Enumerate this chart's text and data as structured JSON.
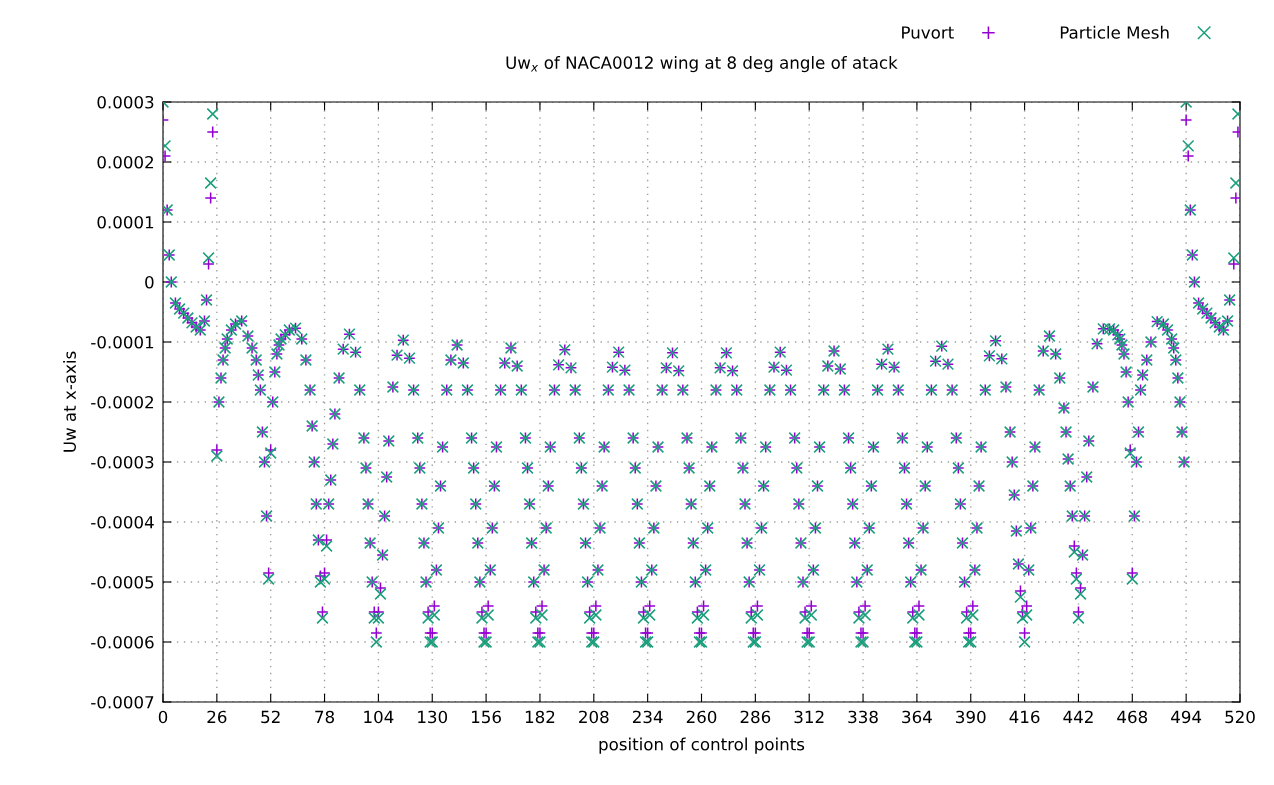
{
  "chart_data": {
    "type": "scatter",
    "title": "Uw$_{x}$ of NACA0012 wing at 8 deg angle of atack",
    "xlabel": "position of control points",
    "ylabel": "Uw at x-axis",
    "xlim": [
      0,
      520
    ],
    "xticks": [
      0,
      26,
      52,
      78,
      104,
      130,
      156,
      182,
      208,
      234,
      260,
      286,
      312,
      338,
      364,
      390,
      416,
      442,
      468,
      494,
      520
    ],
    "ylim": [
      -0.0007,
      0.0003
    ],
    "yticks": [
      -0.0007,
      -0.0006,
      -0.0005,
      -0.0004,
      -0.0003,
      -0.0002,
      -0.0001,
      0,
      0.0001,
      0.0002,
      0.0003
    ],
    "grid": true,
    "legend": "top right",
    "x": [
      0,
      1,
      2,
      3,
      4,
      6,
      8,
      10,
      12,
      14,
      16,
      18,
      20,
      21,
      22,
      23,
      24,
      26,
      27,
      28,
      29,
      30,
      31,
      33,
      35,
      38,
      41,
      43,
      45,
      46,
      47,
      48,
      49,
      50,
      51,
      52,
      53,
      54,
      55,
      56,
      57,
      59,
      61,
      64,
      67,
      69,
      71,
      72,
      73,
      74,
      75,
      76,
      77,
      78,
      79,
      80,
      81,
      82,
      83,
      85,
      87,
      90,
      93,
      95,
      97,
      98,
      99,
      100,
      101,
      102,
      103,
      104,
      105,
      106,
      107,
      108,
      109,
      111,
      113,
      116,
      119,
      121,
      123,
      124,
      125,
      126,
      127,
      128,
      129,
      130,
      131,
      132,
      133,
      134,
      135,
      137,
      139,
      142,
      145,
      147,
      149,
      150,
      151,
      152,
      153,
      154,
      155,
      156,
      157,
      158,
      159,
      160,
      161,
      163,
      165,
      168,
      171,
      173,
      175,
      176,
      177,
      178,
      179,
      180,
      181,
      182,
      183,
      184,
      185,
      186,
      187,
      189,
      191,
      194,
      197,
      199,
      201,
      202,
      203,
      204,
      205,
      206,
      207,
      208,
      209,
      210,
      211,
      212,
      213,
      215,
      217,
      220,
      223,
      225,
      227,
      228,
      229,
      230,
      231,
      232,
      233,
      234,
      235,
      236,
      237,
      238,
      239,
      241,
      243,
      246,
      249,
      251,
      253,
      254,
      255,
      256,
      257,
      258,
      259,
      260,
      261,
      262,
      263,
      264,
      265,
      267,
      269,
      272,
      275,
      277,
      279,
      280,
      281,
      282,
      283,
      284,
      285,
      286,
      287,
      288,
      289,
      290,
      291,
      293,
      295,
      298,
      301,
      303,
      305,
      306,
      307,
      308,
      309,
      310,
      311,
      312,
      313,
      314,
      315,
      316,
      317,
      319,
      321,
      324,
      327,
      329,
      331,
      332,
      333,
      334,
      335,
      336,
      337,
      338,
      339,
      340,
      341,
      342,
      343,
      345,
      347,
      350,
      353,
      355,
      357,
      358,
      359,
      360,
      361,
      362,
      363,
      364,
      365,
      366,
      367,
      368,
      369,
      371,
      373,
      376,
      379,
      381,
      383,
      384,
      385,
      386,
      387,
      388,
      389,
      390,
      391,
      392,
      393,
      394,
      395,
      397,
      399,
      402,
      405,
      407,
      409,
      410,
      411,
      412,
      413,
      414,
      415,
      416,
      417,
      418,
      419,
      420,
      421,
      423,
      425,
      428,
      431,
      433,
      435,
      436,
      437,
      438,
      439,
      440,
      441,
      442,
      443,
      444,
      445,
      446,
      447,
      449,
      451,
      454,
      457,
      459,
      461,
      462,
      463,
      464,
      465,
      466,
      467,
      468,
      469,
      470,
      471,
      472,
      473,
      475,
      477,
      480,
      483,
      485,
      487,
      488,
      489,
      490,
      491,
      492,
      493,
      494,
      495,
      496,
      497,
      498,
      500,
      502,
      504,
      506,
      508,
      510,
      512,
      514,
      515,
      517,
      518,
      519
    ],
    "series": [
      {
        "name": "Puvort",
        "color": "#9400d3",
        "marker": "plus",
        "values": [
          0.00027,
          0.00021,
          0.00012,
          4.5e-05,
          0,
          -3.5e-05,
          -4.5e-05,
          -5.2e-05,
          -6e-05,
          -6.8e-05,
          -7.5e-05,
          -8e-05,
          -6.5e-05,
          -3e-05,
          3e-05,
          0.00014,
          0.00025,
          -0.00028,
          -0.0002,
          -0.00016,
          -0.00013,
          -0.00011,
          -9.5e-05,
          -8e-05,
          -7e-05,
          -6.5e-05,
          -9e-05,
          -0.00011,
          -0.00013,
          -0.000155,
          -0.00018,
          -0.00025,
          -0.0003,
          -0.00039,
          -0.000485,
          -0.00028,
          -0.0002,
          -0.00015,
          -0.00012,
          -0.000105,
          -9.5e-05,
          -8.8e-05,
          -8e-05,
          -7.7e-05,
          -9.5e-05,
          -0.00013,
          -0.00018,
          -0.00024,
          -0.0003,
          -0.00037,
          -0.00043,
          -0.00049,
          -0.00055,
          -0.000485,
          -0.00043,
          -0.00037,
          -0.00033,
          -0.00027,
          -0.00022,
          -0.00016,
          -0.000112,
          -8.7e-05,
          -0.000117,
          -0.00018,
          -0.00026,
          -0.00031,
          -0.00037,
          -0.000435,
          -0.0005,
          -0.00055,
          -0.000585,
          -0.00055,
          -0.00051,
          -0.000455,
          -0.00039,
          -0.000325,
          -0.000265,
          -0.000175,
          -0.000122,
          -9.7e-05,
          -0.000127,
          -0.00018,
          -0.00026,
          -0.00031,
          -0.00037,
          -0.000435,
          -0.0005,
          -0.00055,
          -0.000585,
          -0.000585,
          -0.00054,
          -0.00048,
          -0.00041,
          -0.00034,
          -0.000275,
          -0.00018,
          -0.00013,
          -0.000105,
          -0.000135,
          -0.00018,
          -0.00026,
          -0.00031,
          -0.00037,
          -0.000435,
          -0.0005,
          -0.00055,
          -0.000585,
          -0.000585,
          -0.00054,
          -0.00048,
          -0.00041,
          -0.00034,
          -0.000275,
          -0.00018,
          -0.000135,
          -0.00011,
          -0.00014,
          -0.00018,
          -0.00026,
          -0.00031,
          -0.00037,
          -0.000435,
          -0.0005,
          -0.00055,
          -0.000585,
          -0.000585,
          -0.00054,
          -0.00048,
          -0.00041,
          -0.00034,
          -0.000275,
          -0.00018,
          -0.000138,
          -0.000113,
          -0.000143,
          -0.00018,
          -0.00026,
          -0.00031,
          -0.00037,
          -0.000435,
          -0.0005,
          -0.00055,
          -0.000585,
          -0.000585,
          -0.00054,
          -0.00048,
          -0.00041,
          -0.00034,
          -0.000275,
          -0.00018,
          -0.000142,
          -0.000117,
          -0.000147,
          -0.00018,
          -0.00026,
          -0.00031,
          -0.00037,
          -0.000435,
          -0.0005,
          -0.00055,
          -0.000585,
          -0.000585,
          -0.00054,
          -0.00048,
          -0.00041,
          -0.00034,
          -0.000275,
          -0.00018,
          -0.000143,
          -0.000118,
          -0.000148,
          -0.00018,
          -0.00026,
          -0.00031,
          -0.00037,
          -0.000435,
          -0.0005,
          -0.00055,
          -0.000585,
          -0.000585,
          -0.00054,
          -0.00048,
          -0.00041,
          -0.00034,
          -0.000275,
          -0.00018,
          -0.000143,
          -0.000118,
          -0.000148,
          -0.00018,
          -0.00026,
          -0.00031,
          -0.00037,
          -0.000435,
          -0.0005,
          -0.00055,
          -0.000585,
          -0.000585,
          -0.00054,
          -0.00048,
          -0.00041,
          -0.00034,
          -0.000275,
          -0.00018,
          -0.000142,
          -0.000117,
          -0.000147,
          -0.00018,
          -0.00026,
          -0.00031,
          -0.00037,
          -0.000435,
          -0.0005,
          -0.00055,
          -0.000585,
          -0.000585,
          -0.00054,
          -0.00048,
          -0.00041,
          -0.00034,
          -0.000275,
          -0.00018,
          -0.00014,
          -0.000115,
          -0.000145,
          -0.00018,
          -0.00026,
          -0.00031,
          -0.00037,
          -0.000435,
          -0.0005,
          -0.00055,
          -0.000585,
          -0.000585,
          -0.00054,
          -0.00048,
          -0.00041,
          -0.00034,
          -0.000275,
          -0.00018,
          -0.000137,
          -0.000112,
          -0.000142,
          -0.00018,
          -0.00026,
          -0.00031,
          -0.00037,
          -0.000435,
          -0.0005,
          -0.00055,
          -0.000585,
          -0.000585,
          -0.00054,
          -0.00048,
          -0.00041,
          -0.00034,
          -0.000275,
          -0.00018,
          -0.000132,
          -0.000107,
          -0.000137,
          -0.00018,
          -0.00026,
          -0.00031,
          -0.00037,
          -0.000435,
          -0.0005,
          -0.00055,
          -0.000585,
          -0.000585,
          -0.00054,
          -0.00048,
          -0.00041,
          -0.00034,
          -0.000275,
          -0.00018,
          -0.000123,
          -9.8e-05,
          -0.000128,
          -0.000175,
          -0.00025,
          -0.0003,
          -0.000355,
          -0.000415,
          -0.00047,
          -0.000515,
          -0.00055,
          -0.000585,
          -0.00054,
          -0.00048,
          -0.00041,
          -0.00034,
          -0.000275,
          -0.00018,
          -0.000115,
          -9e-05,
          -0.00012,
          -0.00016,
          -0.00021,
          -0.00025,
          -0.000295,
          -0.00034,
          -0.00039,
          -0.00044,
          -0.000485,
          -0.00055,
          -0.00051,
          -0.000455,
          -0.00039,
          -0.000325,
          -0.000265,
          -0.000175,
          -0.000103,
          -7.8e-05,
          -7.8e-05,
          -8e-05,
          -8.8e-05,
          -9.5e-05,
          -0.000105,
          -0.00012,
          -0.00015,
          -0.0002,
          -0.00028,
          -0.000485,
          -0.00039,
          -0.0003,
          -0.00025,
          -0.00018,
          -0.000155,
          -0.00013,
          -0.0001,
          -6.6e-05,
          -7e-05,
          -8e-05,
          -9.5e-05,
          -0.00011,
          -0.00013,
          -0.00016,
          -0.0002,
          -0.00025,
          -0.0003,
          0.00027,
          0.00021,
          0.00012,
          4.5e-05,
          0,
          -3.5e-05,
          -4.5e-05,
          -5.2e-05,
          -6e-05,
          -6.8e-05,
          -7.5e-05,
          -8e-05,
          -6.5e-05,
          -3e-05,
          3e-05,
          0.00014,
          0.00025
        ]
      },
      {
        "name": "Particle Mesh",
        "color": "#1a9e7c",
        "marker": "cross",
        "values": [
          0.0003,
          0.000227,
          0.00012,
          4.5e-05,
          0,
          -3.5e-05,
          -4.5e-05,
          -5.2e-05,
          -6e-05,
          -6.8e-05,
          -7.5e-05,
          -8e-05,
          -6.5e-05,
          -3e-05,
          4e-05,
          0.000165,
          0.00028,
          -0.00029,
          -0.0002,
          -0.00016,
          -0.00013,
          -0.00011,
          -9.5e-05,
          -8e-05,
          -7e-05,
          -6.5e-05,
          -9e-05,
          -0.00011,
          -0.00013,
          -0.000155,
          -0.00018,
          -0.00025,
          -0.0003,
          -0.00039,
          -0.000495,
          -0.000285,
          -0.0002,
          -0.00015,
          -0.00012,
          -0.000105,
          -9.5e-05,
          -8.8e-05,
          -8e-05,
          -7.7e-05,
          -9.5e-05,
          -0.00013,
          -0.00018,
          -0.00024,
          -0.0003,
          -0.00037,
          -0.00043,
          -0.0005,
          -0.00056,
          -0.000495,
          -0.00044,
          -0.00037,
          -0.00033,
          -0.00027,
          -0.00022,
          -0.00016,
          -0.000112,
          -8.7e-05,
          -0.000117,
          -0.00018,
          -0.00026,
          -0.00031,
          -0.00037,
          -0.000435,
          -0.0005,
          -0.00056,
          -0.0006,
          -0.00056,
          -0.00052,
          -0.000455,
          -0.00039,
          -0.000325,
          -0.000265,
          -0.000175,
          -0.000122,
          -9.7e-05,
          -0.000127,
          -0.00018,
          -0.00026,
          -0.00031,
          -0.00037,
          -0.000435,
          -0.0005,
          -0.00056,
          -0.0006,
          -0.0006,
          -0.000555,
          -0.00048,
          -0.00041,
          -0.00034,
          -0.000275,
          -0.00018,
          -0.00013,
          -0.000105,
          -0.000135,
          -0.00018,
          -0.00026,
          -0.00031,
          -0.00037,
          -0.000435,
          -0.0005,
          -0.00056,
          -0.0006,
          -0.0006,
          -0.000555,
          -0.00048,
          -0.00041,
          -0.00034,
          -0.000275,
          -0.00018,
          -0.000135,
          -0.00011,
          -0.00014,
          -0.00018,
          -0.00026,
          -0.00031,
          -0.00037,
          -0.000435,
          -0.0005,
          -0.00056,
          -0.0006,
          -0.0006,
          -0.000555,
          -0.00048,
          -0.00041,
          -0.00034,
          -0.000275,
          -0.00018,
          -0.000138,
          -0.000113,
          -0.000143,
          -0.00018,
          -0.00026,
          -0.00031,
          -0.00037,
          -0.000435,
          -0.0005,
          -0.00056,
          -0.0006,
          -0.0006,
          -0.000555,
          -0.00048,
          -0.00041,
          -0.00034,
          -0.000275,
          -0.00018,
          -0.000142,
          -0.000117,
          -0.000147,
          -0.00018,
          -0.00026,
          -0.00031,
          -0.00037,
          -0.000435,
          -0.0005,
          -0.00056,
          -0.0006,
          -0.0006,
          -0.000555,
          -0.00048,
          -0.00041,
          -0.00034,
          -0.000275,
          -0.00018,
          -0.000143,
          -0.000118,
          -0.000148,
          -0.00018,
          -0.00026,
          -0.00031,
          -0.00037,
          -0.000435,
          -0.0005,
          -0.00056,
          -0.0006,
          -0.0006,
          -0.000555,
          -0.00048,
          -0.00041,
          -0.00034,
          -0.000275,
          -0.00018,
          -0.000143,
          -0.000118,
          -0.000148,
          -0.00018,
          -0.00026,
          -0.00031,
          -0.00037,
          -0.000435,
          -0.0005,
          -0.00056,
          -0.0006,
          -0.0006,
          -0.000555,
          -0.00048,
          -0.00041,
          -0.00034,
          -0.000275,
          -0.00018,
          -0.000142,
          -0.000117,
          -0.000147,
          -0.00018,
          -0.00026,
          -0.00031,
          -0.00037,
          -0.000435,
          -0.0005,
          -0.00056,
          -0.0006,
          -0.0006,
          -0.000555,
          -0.00048,
          -0.00041,
          -0.00034,
          -0.000275,
          -0.00018,
          -0.00014,
          -0.000115,
          -0.000145,
          -0.00018,
          -0.00026,
          -0.00031,
          -0.00037,
          -0.000435,
          -0.0005,
          -0.00056,
          -0.0006,
          -0.0006,
          -0.000555,
          -0.00048,
          -0.00041,
          -0.00034,
          -0.000275,
          -0.00018,
          -0.000137,
          -0.000112,
          -0.000142,
          -0.00018,
          -0.00026,
          -0.00031,
          -0.00037,
          -0.000435,
          -0.0005,
          -0.00056,
          -0.0006,
          -0.0006,
          -0.000555,
          -0.00048,
          -0.00041,
          -0.00034,
          -0.000275,
          -0.00018,
          -0.000132,
          -0.000107,
          -0.000137,
          -0.00018,
          -0.00026,
          -0.00031,
          -0.00037,
          -0.000435,
          -0.0005,
          -0.00056,
          -0.0006,
          -0.0006,
          -0.000555,
          -0.00048,
          -0.00041,
          -0.00034,
          -0.000275,
          -0.00018,
          -0.000123,
          -9.8e-05,
          -0.000128,
          -0.000175,
          -0.00025,
          -0.0003,
          -0.000355,
          -0.000415,
          -0.00047,
          -0.000525,
          -0.00056,
          -0.0006,
          -0.000555,
          -0.00048,
          -0.00041,
          -0.00034,
          -0.000275,
          -0.00018,
          -0.000115,
          -9e-05,
          -0.00012,
          -0.00016,
          -0.00021,
          -0.00025,
          -0.000295,
          -0.00034,
          -0.00039,
          -0.00045,
          -0.000495,
          -0.00056,
          -0.00052,
          -0.000455,
          -0.00039,
          -0.000325,
          -0.000265,
          -0.000175,
          -0.000103,
          -7.8e-05,
          -7.8e-05,
          -8e-05,
          -8.8e-05,
          -9.5e-05,
          -0.000105,
          -0.00012,
          -0.00015,
          -0.0002,
          -0.000285,
          -0.000495,
          -0.00039,
          -0.0003,
          -0.00025,
          -0.00018,
          -0.000155,
          -0.00013,
          -0.0001,
          -6.6e-05,
          -7e-05,
          -8e-05,
          -9.5e-05,
          -0.00011,
          -0.00013,
          -0.00016,
          -0.0002,
          -0.00025,
          -0.0003,
          0.0003,
          0.000227,
          0.00012,
          4.5e-05,
          0,
          -3.5e-05,
          -4.5e-05,
          -5.2e-05,
          -6e-05,
          -6.8e-05,
          -7.5e-05,
          -8e-05,
          -6.5e-05,
          -3e-05,
          4e-05,
          0.000165,
          0.00028
        ]
      }
    ]
  }
}
